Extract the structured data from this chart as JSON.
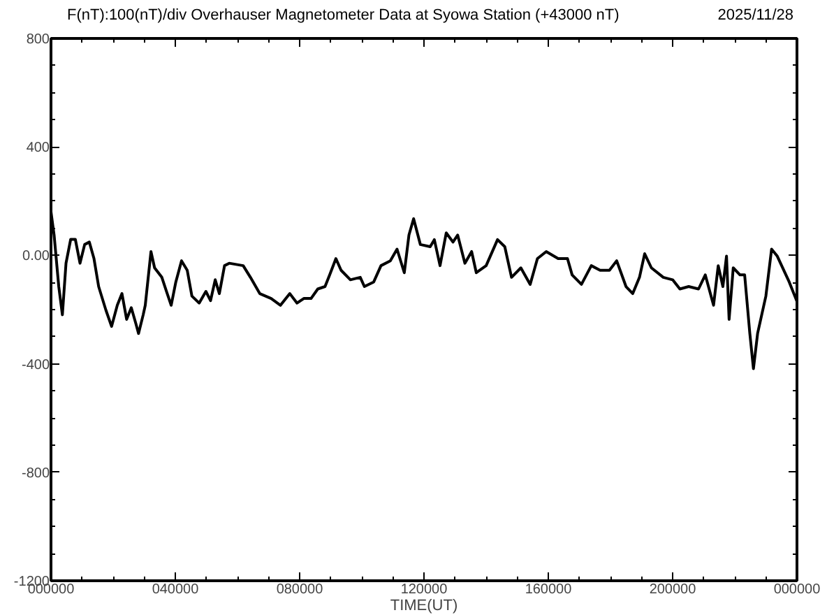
{
  "chart_data": {
    "type": "line",
    "title": "F(nT):100(nT)/div  Overhauser Magnetometer Data at Syowa Station (+43000 nT)",
    "xlabel": "TIME(UT)",
    "annotations": [
      "2025/11/28"
    ],
    "xlim": [
      "2025-11-28T00:00",
      "2025-11-29T00:00"
    ],
    "ylim": [
      -1200,
      800
    ],
    "xticks": [
      {
        "value": "2025-11-28T00:00",
        "label": "000000"
      },
      {
        "value": "2025-11-28T04:00",
        "label": "040000"
      },
      {
        "value": "2025-11-28T08:00",
        "label": "080000"
      },
      {
        "value": "2025-11-28T12:00",
        "label": "120000"
      },
      {
        "value": "2025-11-28T16:00",
        "label": "160000"
      },
      {
        "value": "2025-11-28T20:00",
        "label": "200000"
      },
      {
        "value": "2025-11-29T00:00",
        "label": "000000"
      }
    ],
    "yticks": [
      -1200,
      -800,
      -400,
      {
        "value": 0,
        "label": "0.00"
      },
      400,
      800
    ],
    "grid": false,
    "marker": "none",
    "line_style": "solid",
    "series": [
      {
        "color": "#000000",
        "x": [
          "2025-11-28T00:00",
          "2025-11-28T00:06",
          "2025-11-28T00:15",
          "2025-11-28T00:22",
          "2025-11-28T00:29",
          "2025-11-28T00:38",
          "2025-11-28T00:47",
          "2025-11-28T00:56",
          "2025-11-28T01:05",
          "2025-11-28T01:14",
          "2025-11-28T01:23",
          "2025-11-28T01:32",
          "2025-11-28T01:46",
          "2025-11-28T01:57",
          "2025-11-28T02:08",
          "2025-11-28T02:17",
          "2025-11-28T02:26",
          "2025-11-28T02:35",
          "2025-11-28T02:44",
          "2025-11-28T02:49",
          "2025-11-28T02:58",
          "2025-11-28T03:02",
          "2025-11-28T03:13",
          "2025-11-28T03:20",
          "2025-11-28T03:34",
          "2025-11-28T03:43",
          "2025-11-28T03:52",
          "2025-11-28T04:01",
          "2025-11-28T04:12",
          "2025-11-28T04:23",
          "2025-11-28T04:32",
          "2025-11-28T04:46",
          "2025-11-28T04:59",
          "2025-11-28T05:08",
          "2025-11-28T05:17",
          "2025-11-28T05:25",
          "2025-11-28T05:35",
          "2025-11-28T05:44",
          "2025-11-28T06:11",
          "2025-11-28T06:25",
          "2025-11-28T06:43",
          "2025-11-28T07:05",
          "2025-11-28T07:23",
          "2025-11-28T07:41",
          "2025-11-28T07:55",
          "2025-11-28T08:08",
          "2025-11-28T08:22",
          "2025-11-28T08:35",
          "2025-11-28T08:49",
          "2025-11-28T08:58",
          "2025-11-28T09:10",
          "2025-11-28T09:20",
          "2025-11-28T09:38",
          "2025-11-28T09:57",
          "2025-11-28T10:05",
          "2025-11-28T10:23",
          "2025-11-28T10:37",
          "2025-11-28T10:55",
          "2025-11-28T11:08",
          "2025-11-28T11:22",
          "2025-11-28T11:31",
          "2025-11-28T11:40",
          "2025-11-28T11:53",
          "2025-11-28T12:12",
          "2025-11-28T12:20",
          "2025-11-28T12:31",
          "2025-11-28T12:43",
          "2025-11-28T12:56",
          "2025-11-28T13:05",
          "2025-11-28T13:19",
          "2025-11-28T13:32",
          "2025-11-28T13:41",
          "2025-11-28T14:00",
          "2025-11-28T14:22",
          "2025-11-28T14:36",
          "2025-11-28T14:49",
          "2025-11-28T15:07",
          "2025-11-28T15:25",
          "2025-11-28T15:39",
          "2025-11-28T15:56",
          "2025-11-28T16:19",
          "2025-11-28T16:37",
          "2025-11-28T16:46",
          "2025-11-28T17:04",
          "2025-11-28T17:23",
          "2025-11-28T17:40",
          "2025-11-28T17:58",
          "2025-11-28T18:12",
          "2025-11-28T18:30",
          "2025-11-28T18:43",
          "2025-11-28T18:56",
          "2025-11-28T19:06",
          "2025-11-28T19:19",
          "2025-11-28T19:42",
          "2025-11-28T20:00",
          "2025-11-28T20:14",
          "2025-11-28T20:31",
          "2025-11-28T20:50",
          "2025-11-28T21:03",
          "2025-11-28T21:19",
          "2025-11-28T21:28",
          "2025-11-28T21:37",
          "2025-11-28T21:44",
          "2025-11-28T21:49",
          "2025-11-28T21:57",
          "2025-11-28T22:10",
          "2025-11-28T22:19",
          "2025-11-28T22:29",
          "2025-11-28T22:36",
          "2025-11-28T22:44",
          "2025-11-28T23:00",
          "2025-11-28T23:11",
          "2025-11-28T23:22",
          "2025-11-28T23:45",
          "2025-11-29T00:00"
        ],
        "values": [
          161,
          75,
          -115,
          -219,
          -29,
          59,
          59,
          -29,
          40,
          49,
          -12,
          -115,
          -202,
          -262,
          -184,
          -141,
          -236,
          -193,
          -253,
          -288,
          -219,
          -184,
          14,
          -46,
          -81,
          -133,
          -184,
          -98,
          -20,
          -55,
          -150,
          -176,
          -133,
          -167,
          -90,
          -141,
          -38,
          -29,
          -38,
          -81,
          -141,
          -159,
          -184,
          -141,
          -176,
          -159,
          -159,
          -124,
          -115,
          -72,
          -12,
          -55,
          -90,
          -81,
          -115,
          -98,
          -38,
          -20,
          23,
          -64,
          75,
          135,
          40,
          32,
          58,
          -38,
          83,
          49,
          75,
          -29,
          14,
          -64,
          -38,
          58,
          32,
          -81,
          -46,
          -107,
          -12,
          14,
          -12,
          -12,
          -72,
          -107,
          -38,
          -55,
          -55,
          -20,
          -115,
          -141,
          -81,
          6,
          -46,
          -81,
          -90,
          -124,
          -115,
          -124,
          -72,
          -184,
          -38,
          -115,
          -3,
          -236,
          -46,
          -72,
          -72,
          -288,
          -418,
          -288,
          -150,
          23,
          -3,
          -98,
          -170
        ]
      }
    ]
  }
}
